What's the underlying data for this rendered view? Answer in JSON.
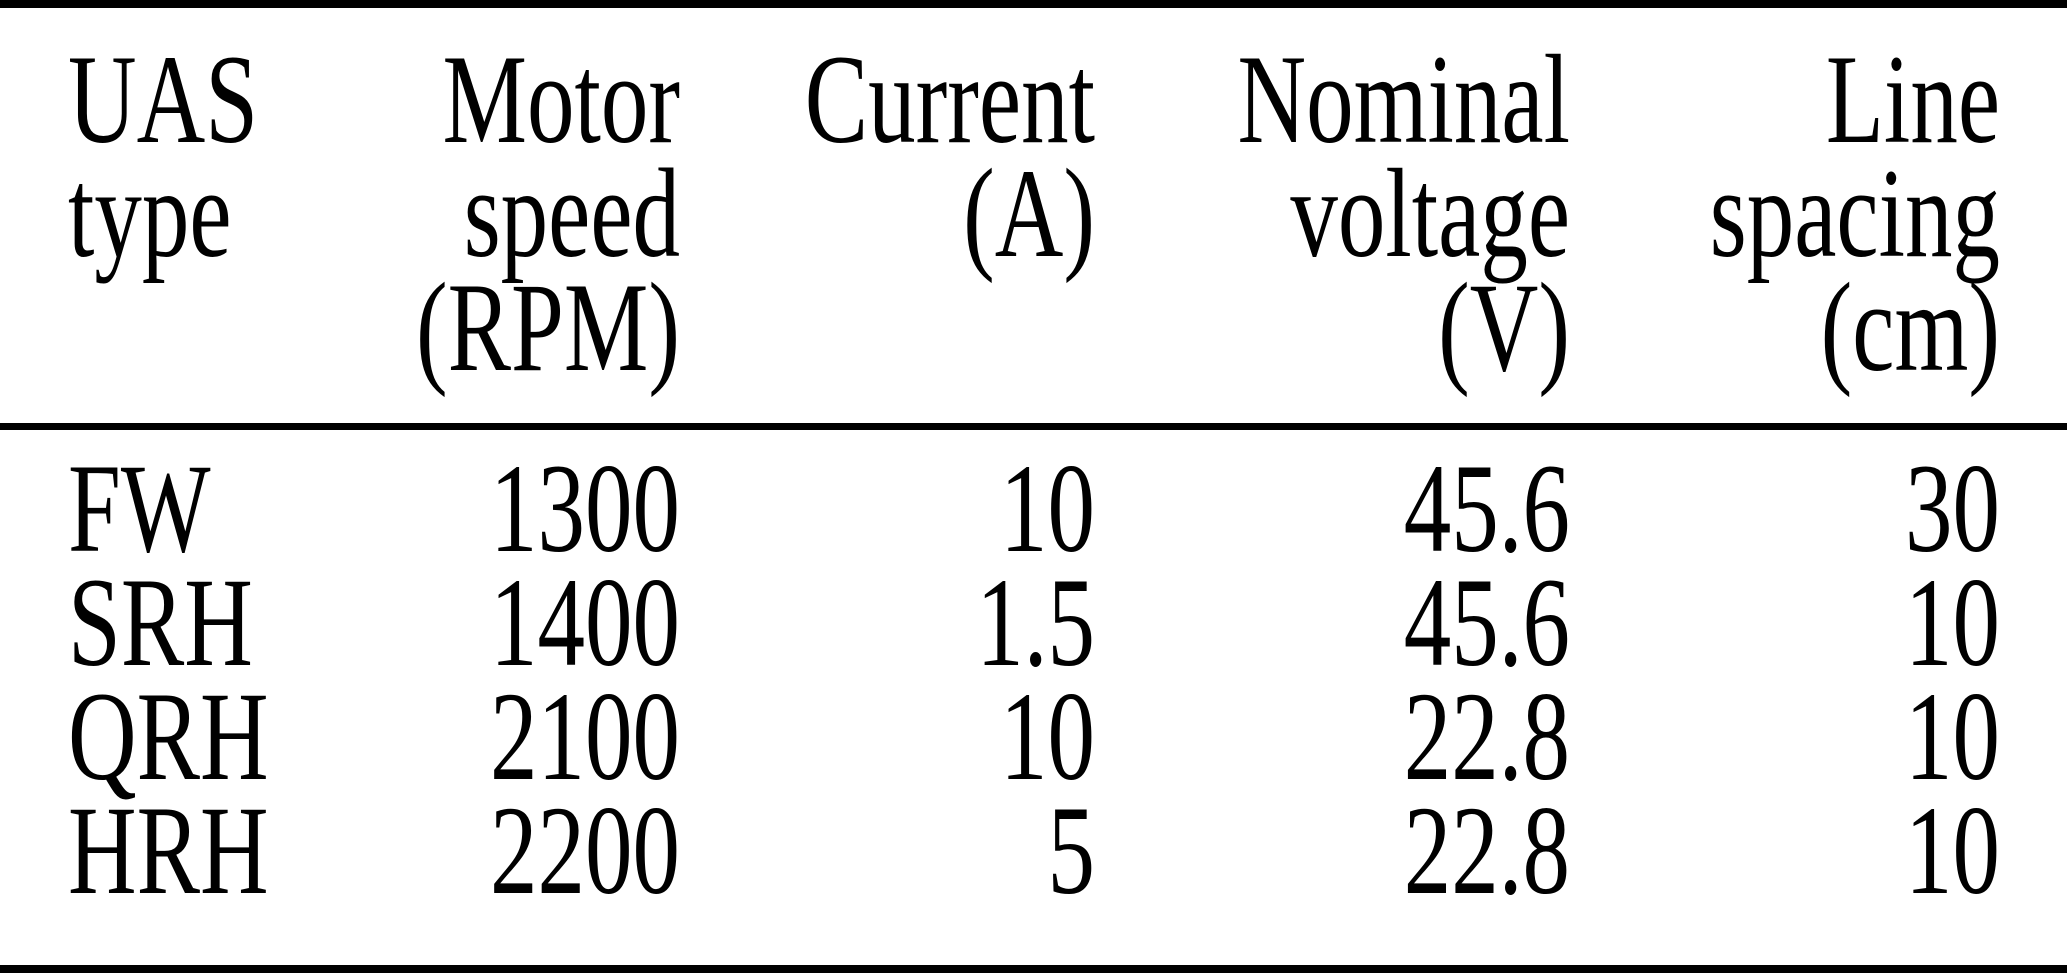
{
  "colors": {
    "background": "#ffffff",
    "text": "#000000",
    "rule": "#000000"
  },
  "table": {
    "columns": [
      {
        "id": "uas_type",
        "header": "UAS\ntype",
        "align": "left"
      },
      {
        "id": "motor_speed_rpm",
        "header": "Motor\nspeed\n(RPM)",
        "align": "right"
      },
      {
        "id": "current_a",
        "header": "Current\n(A)",
        "align": "right"
      },
      {
        "id": "nominal_voltage_v",
        "header": "Nominal\nvoltage\n(V)",
        "align": "right"
      },
      {
        "id": "line_spacing_cm",
        "header": "Line\nspacing\n(cm)",
        "align": "right"
      }
    ],
    "rows": [
      {
        "cells": [
          "FW",
          "1300",
          "10",
          "45.6",
          "30"
        ]
      },
      {
        "cells": [
          "SRH",
          "1400",
          "1.5",
          "45.6",
          "10"
        ]
      },
      {
        "cells": [
          "QRH",
          "2100",
          "10",
          "22.8",
          "10"
        ]
      },
      {
        "cells": [
          "HRH",
          "2200",
          "5",
          "22.8",
          "10"
        ]
      }
    ]
  }
}
